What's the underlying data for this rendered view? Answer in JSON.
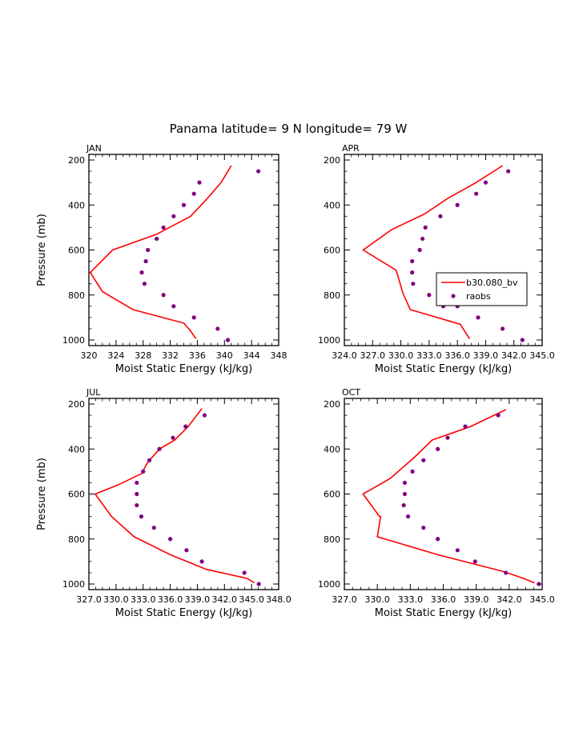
{
  "figure": {
    "title": "Panama  latitude= 9 N longitude= 79 W"
  },
  "legend": {
    "model_label": "b30.080_bv",
    "obs_label": "raobs"
  },
  "colors": {
    "model": "#ff0000",
    "obs": "#800080"
  },
  "chart_data": [
    {
      "type": "line",
      "title": "JAN",
      "xlabel": "Moist Static Energy (kJ/kg)",
      "ylabel": "Pressure (mb)",
      "xlim": [
        320,
        348
      ],
      "ylim": [
        1000,
        200
      ],
      "xticks": [
        320,
        324,
        328,
        332,
        336,
        340,
        344,
        348
      ],
      "xtick_labels": [
        "320",
        "324",
        "328",
        "332",
        "336",
        "340",
        "344",
        "348"
      ],
      "yticks": [
        200,
        400,
        600,
        800,
        1000
      ],
      "series": [
        {
          "name": "b30.080_bv",
          "style": "line",
          "x": [
            341.0,
            339.5,
            337.5,
            335.0,
            330.0,
            323.5,
            320.2,
            322.0,
            326.5,
            334.0,
            335.0,
            335.8
          ],
          "y": [
            225,
            300,
            370,
            450,
            530,
            600,
            700,
            785,
            865,
            925,
            960,
            995
          ]
        },
        {
          "name": "raobs",
          "style": "markers",
          "x": [
            345.0,
            336.3,
            335.5,
            334.0,
            332.5,
            331.0,
            330.0,
            328.7,
            328.4,
            327.8,
            328.2,
            331.0,
            332.5,
            335.5,
            339.0,
            340.5
          ],
          "y": [
            250,
            300,
            350,
            400,
            450,
            500,
            550,
            600,
            650,
            700,
            750,
            800,
            850,
            900,
            950,
            1000
          ]
        }
      ]
    },
    {
      "type": "line",
      "title": "APR",
      "xlabel": "Moist Static Energy (kJ/kg)",
      "ylabel": "",
      "xlim": [
        324.0,
        345.0
      ],
      "ylim": [
        1000,
        200
      ],
      "xticks": [
        324.0,
        327.0,
        330.0,
        333.0,
        336.0,
        339.0,
        342.0,
        345.0
      ],
      "xtick_labels": [
        "324.0",
        "327.0",
        "330.0",
        "333.0",
        "336.0",
        "339.0",
        "342.0",
        "345.0"
      ],
      "yticks": [
        200,
        400,
        600,
        800,
        1000
      ],
      "series": [
        {
          "name": "b30.080_bv",
          "style": "line",
          "x": [
            340.8,
            338.0,
            335.0,
            332.5,
            329.0,
            326.0,
            329.5,
            330.2,
            331.0,
            336.3,
            337.3
          ],
          "y": [
            225,
            300,
            370,
            440,
            510,
            600,
            690,
            790,
            865,
            930,
            995
          ]
        },
        {
          "name": "raobs",
          "style": "markers",
          "x": [
            341.4,
            339.0,
            338.0,
            336.0,
            334.2,
            332.6,
            332.3,
            332.0,
            331.2,
            331.2,
            331.3,
            333.0,
            334.5,
            336.0,
            338.2,
            340.8,
            342.9
          ],
          "y": [
            250,
            300,
            350,
            400,
            450,
            500,
            550,
            600,
            650,
            700,
            750,
            800,
            850,
            850,
            900,
            950,
            1000
          ]
        }
      ]
    },
    {
      "type": "line",
      "title": "JUL",
      "xlabel": "Moist Static Energy (kJ/kg)",
      "ylabel": "Pressure (mb)",
      "xlim": [
        327.0,
        348.0
      ],
      "ylim": [
        1000,
        200
      ],
      "xticks": [
        327.0,
        330.0,
        333.0,
        336.0,
        339.0,
        342.0,
        345.0,
        348.0
      ],
      "xtick_labels": [
        "327.0",
        "330.0",
        "333.0",
        "336.0",
        "339.0",
        "342.0",
        "345.0",
        "348.0"
      ],
      "yticks": [
        200,
        400,
        600,
        800,
        1000
      ],
      "series": [
        {
          "name": "b30.080_bv",
          "style": "line",
          "x": [
            339.5,
            338.0,
            336.5,
            334.8,
            333.5,
            332.8,
            330.2,
            327.7,
            329.5,
            332.0,
            336.0,
            340.0,
            344.5,
            345.3
          ],
          "y": [
            220,
            300,
            360,
            400,
            460,
            510,
            560,
            600,
            700,
            790,
            870,
            935,
            975,
            995
          ]
        },
        {
          "name": "raobs",
          "style": "markers",
          "x": [
            339.8,
            337.7,
            336.3,
            334.8,
            333.7,
            333.0,
            332.3,
            332.3,
            332.3,
            332.8,
            334.2,
            336.0,
            337.8,
            339.5,
            344.2,
            345.8
          ],
          "y": [
            250,
            300,
            350,
            400,
            450,
            500,
            550,
            600,
            650,
            700,
            750,
            800,
            850,
            900,
            950,
            1000
          ]
        }
      ]
    },
    {
      "type": "line",
      "title": "OCT",
      "xlabel": "Moist Static Energy (kJ/kg)",
      "ylabel": "",
      "xlim": [
        327.0,
        345.0
      ],
      "ylim": [
        1000,
        200
      ],
      "xticks": [
        327.0,
        330.0,
        333.0,
        336.0,
        339.0,
        342.0,
        345.0
      ],
      "xtick_labels": [
        "327.0",
        "330.0",
        "333.0",
        "336.0",
        "339.0",
        "342.0",
        "345.0"
      ],
      "yticks": [
        200,
        400,
        600,
        800,
        1000
      ],
      "series": [
        {
          "name": "b30.080_bv",
          "style": "line",
          "x": [
            341.7,
            338.5,
            335.0,
            333.3,
            331.2,
            328.7,
            330.2,
            330.3,
            330.0,
            335.5,
            341.5,
            343.3,
            344.3
          ],
          "y": [
            225,
            300,
            360,
            440,
            530,
            600,
            700,
            700,
            790,
            870,
            945,
            975,
            995
          ]
        },
        {
          "name": "raobs",
          "style": "markers",
          "x": [
            341.0,
            338.0,
            336.4,
            335.5,
            334.2,
            333.2,
            332.5,
            332.5,
            332.4,
            332.8,
            334.2,
            335.5,
            337.3,
            338.9,
            341.7,
            344.7
          ],
          "y": [
            250,
            300,
            350,
            400,
            450,
            500,
            550,
            600,
            650,
            700,
            750,
            800,
            850,
            900,
            950,
            1000
          ]
        }
      ]
    }
  ]
}
